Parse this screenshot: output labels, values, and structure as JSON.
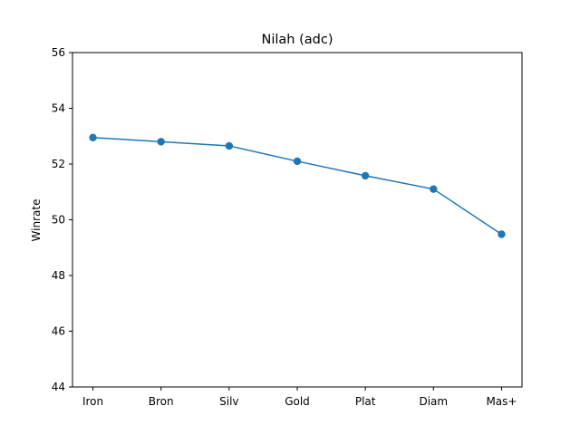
{
  "chart_data": {
    "type": "line",
    "title": "Nilah (adc)",
    "xlabel": "",
    "ylabel": "Winrate",
    "categories": [
      "Iron",
      "Bron",
      "Silv",
      "Gold",
      "Plat",
      "Diam",
      "Mas+"
    ],
    "series": [
      {
        "values": [
          52.95,
          52.8,
          52.65,
          52.1,
          51.58,
          51.1,
          49.48
        ]
      }
    ],
    "ylim": [
      44,
      56
    ],
    "yticks": [
      44,
      46,
      48,
      50,
      52,
      54,
      56
    ],
    "grid": false,
    "legend": "none",
    "color": "#1f77b4"
  }
}
